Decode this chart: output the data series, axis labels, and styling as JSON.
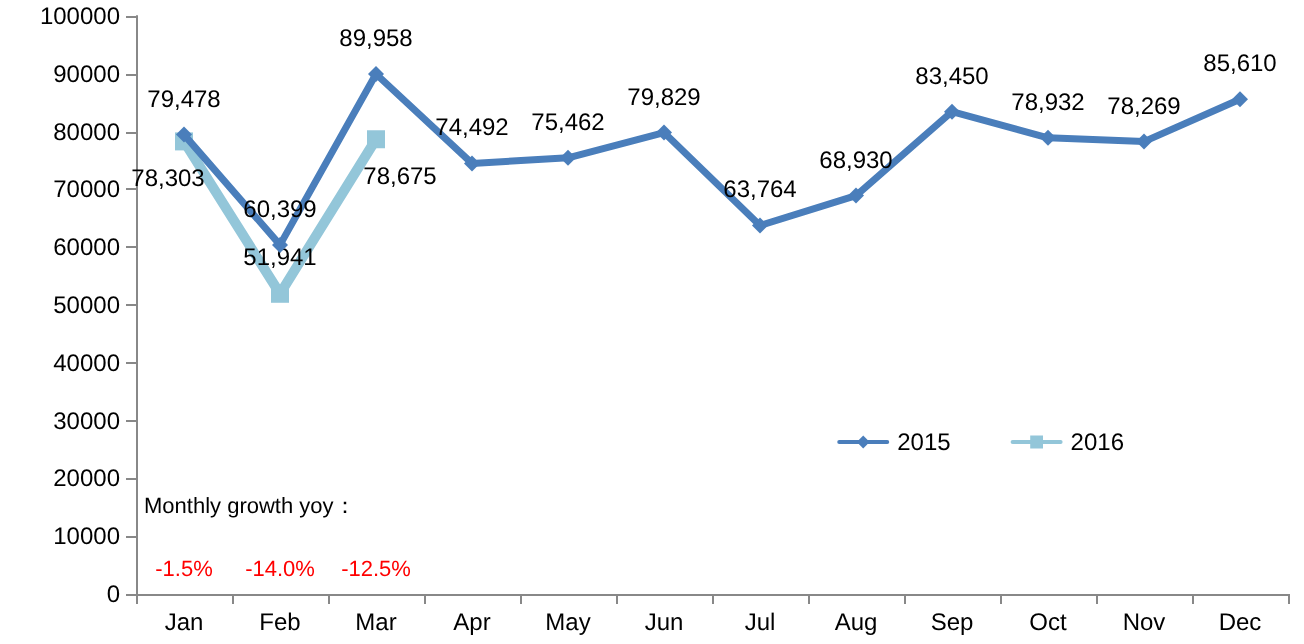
{
  "chart_data": {
    "type": "line",
    "categories": [
      "Jan",
      "Feb",
      "Mar",
      "Apr",
      "May",
      "Jun",
      "Jul",
      "Aug",
      "Sep",
      "Oct",
      "Nov",
      "Dec"
    ],
    "series": [
      {
        "name": "2015",
        "color": "#4a7ebb",
        "marker": "diamond",
        "values": [
          79478,
          60399,
          89958,
          74492,
          75462,
          79829,
          63764,
          68930,
          83450,
          78932,
          78269,
          85610
        ],
        "value_labels": [
          "79,478",
          "60,399",
          "89,958",
          "74,492",
          "75,462",
          "79,829",
          "63,764",
          "68,930",
          "83,450",
          "78,932",
          "78,269",
          "85,610"
        ]
      },
      {
        "name": "2016",
        "color": "#93c6d9",
        "marker": "square",
        "values": [
          78303,
          51941,
          78675,
          null,
          null,
          null,
          null,
          null,
          null,
          null,
          null,
          null
        ],
        "value_labels": [
          "78,303",
          "51,941",
          "78,675",
          null,
          null,
          null,
          null,
          null,
          null,
          null,
          null,
          null
        ]
      }
    ],
    "ylim": [
      0,
      100000
    ],
    "yticks": [
      0,
      10000,
      20000,
      30000,
      40000,
      50000,
      60000,
      70000,
      80000,
      90000,
      100000
    ],
    "grid": false,
    "legend": "bottom right",
    "line_style": "solid",
    "annotations": [
      "Monthly growth yoy：",
      "-1.5%",
      "-14.0%",
      "-12.5%"
    ]
  }
}
